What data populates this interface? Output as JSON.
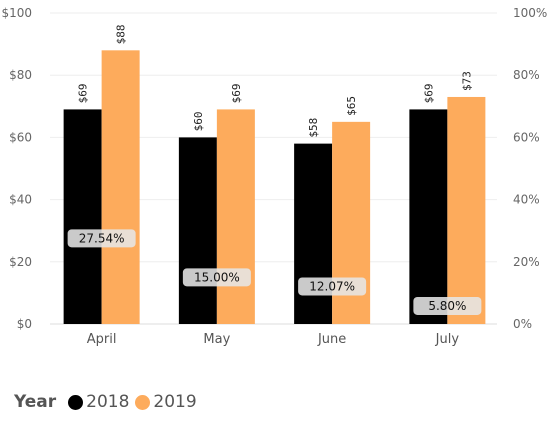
{
  "chart_data": {
    "type": "bar",
    "categories": [
      "April",
      "May",
      "June",
      "July"
    ],
    "series": [
      {
        "name": "2018",
        "values": [
          69,
          60,
          58,
          69
        ],
        "labels": [
          "$69",
          "$60",
          "$58",
          "$69"
        ],
        "color": "#000000"
      },
      {
        "name": "2019",
        "values": [
          88,
          69,
          65,
          73
        ],
        "labels": [
          "$88",
          "$69",
          "$65",
          "$73"
        ],
        "color": "#FDAB5C"
      }
    ],
    "growth": {
      "values": [
        27.54,
        15.0,
        12.07,
        5.8
      ],
      "labels": [
        "27.54%",
        "15.00%",
        "12.07%",
        "5.80%"
      ]
    },
    "ylim": [
      0,
      100
    ],
    "y_ticks": [
      "$0",
      "$20",
      "$40",
      "$60",
      "$80",
      "$100"
    ],
    "y2lim": [
      0,
      100
    ],
    "y2_ticks": [
      "0%",
      "20%",
      "40%",
      "60%",
      "80%",
      "100%"
    ],
    "grid": true,
    "legend": {
      "title": "Year",
      "position": "bottom-left"
    }
  }
}
